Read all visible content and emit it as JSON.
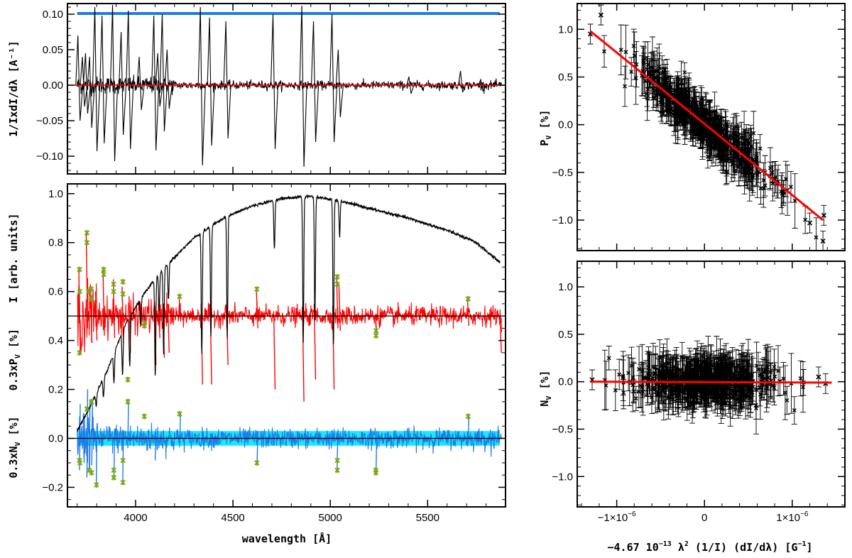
{
  "chart_data": [
    {
      "id": "top-left",
      "type": "line",
      "title": "",
      "xlabel": "",
      "ylabel": "1/IxdI/dλ [A⁻¹]",
      "xlim": [
        3650,
        5900
      ],
      "ylim": [
        -0.125,
        0.115
      ],
      "yticks": [
        -0.1,
        -0.05,
        0.0,
        0.05,
        0.1
      ],
      "ytick_labels": [
        "−0.10",
        "−0.05",
        "0.00",
        "0.05",
        "0.10"
      ],
      "xticks": [
        4000,
        4500,
        5000,
        5500
      ],
      "series": [
        {
          "name": "mask",
          "color": "#1f7ae6",
          "x": [
            3700,
            5870
          ],
          "y": [
            0.101,
            0.101
          ]
        },
        {
          "name": "zero",
          "color": "#ff0000",
          "x": [
            3650,
            5900
          ],
          "y": [
            0,
            0
          ]
        },
        {
          "name": "derivative",
          "color": "#000000",
          "lines": [
            {
              "x": 3711,
              "min": -0.05,
              "max": 0.07
            },
            {
              "x": 3734,
              "min": -0.03,
              "max": 0.04
            },
            {
              "x": 3750,
              "min": -0.04,
              "max": 0.045
            },
            {
              "x": 3771,
              "min": -0.06,
              "max": 0.04
            },
            {
              "x": 3798,
              "min": -0.093,
              "max": 0.11
            },
            {
              "x": 3835,
              "min": -0.082,
              "max": 0.098
            },
            {
              "x": 3889,
              "min": -0.107,
              "max": 0.113
            },
            {
              "x": 3933,
              "min": -0.07,
              "max": 0.075
            },
            {
              "x": 3970,
              "min": -0.09,
              "max": 0.105
            },
            {
              "x": 4026,
              "min": -0.035,
              "max": 0.04
            },
            {
              "x": 4101,
              "min": -0.092,
              "max": 0.098
            },
            {
              "x": 4121,
              "min": -0.03,
              "max": 0.045
            },
            {
              "x": 4144,
              "min": -0.065,
              "max": 0.1
            },
            {
              "x": 4169,
              "min": -0.033,
              "max": 0.05
            },
            {
              "x": 4340,
              "min": -0.113,
              "max": 0.11
            },
            {
              "x": 4387,
              "min": -0.085,
              "max": 0.095
            },
            {
              "x": 4471,
              "min": -0.075,
              "max": 0.09
            },
            {
              "x": 4713,
              "min": -0.09,
              "max": 0.1
            },
            {
              "x": 4861,
              "min": -0.115,
              "max": 0.112
            },
            {
              "x": 4921,
              "min": -0.08,
              "max": 0.09
            },
            {
              "x": 5016,
              "min": -0.08,
              "max": 0.1
            },
            {
              "x": 5048,
              "min": -0.045,
              "max": 0.05
            },
            {
              "x": 5411,
              "min": -0.012,
              "max": 0.012
            },
            {
              "x": 5676,
              "min": -0.01,
              "max": 0.02
            },
            {
              "x": 5780,
              "min": -0.008,
              "max": 0.008
            }
          ]
        }
      ]
    },
    {
      "id": "bottom-left",
      "type": "line",
      "title": "",
      "xlabel": "wavelength [Å]",
      "ylabel_stack": [
        "0.3xN",
        "V",
        " [%]    0.3xP",
        "V",
        " [%]    I [arb. units]"
      ],
      "ylabel": "0.3xNV [%]    0.3xPV [%]    I [arb. units]",
      "xlim": [
        3650,
        5900
      ],
      "ylim": [
        -0.28,
        1.04
      ],
      "yticks": [
        -0.2,
        0.0,
        0.2,
        0.4,
        0.6,
        0.8,
        1.0
      ],
      "ytick_labels": [
        "−0.2",
        "0.0",
        "0.2",
        "0.4",
        "0.6",
        "0.8",
        "1.0"
      ],
      "xticks": [
        4000,
        4500,
        5000,
        5500
      ],
      "xtick_labels": [
        "4000",
        "4500",
        "5000",
        "5500"
      ],
      "series": [
        {
          "name": "intensity",
          "color": "#000000",
          "continuum": [
            [
              3700,
              0.03
            ],
            [
              3760,
              0.12
            ],
            [
              3850,
              0.27
            ],
            [
              3950,
              0.47
            ],
            [
              4050,
              0.6
            ],
            [
              4150,
              0.7
            ],
            [
              4300,
              0.82
            ],
            [
              4450,
              0.9
            ],
            [
              4600,
              0.95
            ],
            [
              4750,
              0.98
            ],
            [
              4900,
              0.99
            ],
            [
              5050,
              0.97
            ],
            [
              5200,
              0.94
            ],
            [
              5400,
              0.9
            ],
            [
              5600,
              0.85
            ],
            [
              5750,
              0.8
            ],
            [
              5870,
              0.72
            ]
          ],
          "absorption_lines": [
            {
              "x": 3798,
              "depth": 0.05
            },
            {
              "x": 3835,
              "depth": 0.08
            },
            {
              "x": 3889,
              "depth": 0.12
            },
            {
              "x": 3933,
              "depth": 0.18
            },
            {
              "x": 3970,
              "depth": 0.2
            },
            {
              "x": 4026,
              "depth": 0.1
            },
            {
              "x": 4101,
              "depth": 0.4
            },
            {
              "x": 4121,
              "depth": 0.15
            },
            {
              "x": 4144,
              "depth": 0.35
            },
            {
              "x": 4169,
              "depth": 0.15
            },
            {
              "x": 4340,
              "depth": 0.5
            },
            {
              "x": 4387,
              "depth": 0.45
            },
            {
              "x": 4471,
              "depth": 0.5
            },
            {
              "x": 4713,
              "depth": 0.2
            },
            {
              "x": 4861,
              "depth": 0.6
            },
            {
              "x": 4921,
              "depth": 0.5
            },
            {
              "x": 5016,
              "depth": 0.6
            },
            {
              "x": 5048,
              "depth": 0.15
            }
          ]
        },
        {
          "name": "Stokes PV (scaled)",
          "color": "#ff0000",
          "baseline": 0.5,
          "lines": [
            {
              "x": 3712,
              "min": 0.35,
              "max": 0.69
            },
            {
              "x": 3750,
              "min": 0.45,
              "max": 0.84
            },
            {
              "x": 3772,
              "min": 0.39,
              "max": 0.63
            },
            {
              "x": 3798,
              "min": 0.4,
              "max": 0.6
            },
            {
              "x": 3836,
              "min": 0.42,
              "max": 0.69
            },
            {
              "x": 3889,
              "min": 0.41,
              "max": 0.65
            },
            {
              "x": 3934,
              "min": 0.39,
              "max": 0.62
            },
            {
              "x": 3970,
              "min": 0.35,
              "max": 0.58
            },
            {
              "x": 4026,
              "min": 0.46,
              "max": 0.56
            },
            {
              "x": 4101,
              "min": 0.3,
              "max": 0.56
            },
            {
              "x": 4121,
              "min": 0.41,
              "max": 0.55
            },
            {
              "x": 4144,
              "min": 0.33,
              "max": 0.55
            },
            {
              "x": 4169,
              "min": 0.35,
              "max": 0.55
            },
            {
              "x": 4227,
              "min": 0.48,
              "max": 0.58
            },
            {
              "x": 4340,
              "min": 0.22,
              "max": 0.55
            },
            {
              "x": 4387,
              "min": 0.22,
              "max": 0.55
            },
            {
              "x": 4471,
              "min": 0.3,
              "max": 0.55
            },
            {
              "x": 4624,
              "min": 0.45,
              "max": 0.61
            },
            {
              "x": 4713,
              "min": 0.2,
              "max": 0.52
            },
            {
              "x": 4861,
              "min": 0.15,
              "max": 0.53
            },
            {
              "x": 4921,
              "min": 0.24,
              "max": 0.55
            },
            {
              "x": 5016,
              "min": 0.2,
              "max": 0.54
            },
            {
              "x": 5036,
              "min": 0.45,
              "max": 0.66
            },
            {
              "x": 5048,
              "min": 0.44,
              "max": 0.63
            },
            {
              "x": 5235,
              "min": 0.43,
              "max": 0.5
            },
            {
              "x": 5708,
              "min": 0.46,
              "max": 0.57
            },
            {
              "x": 5875,
              "min": 0.35,
              "max": 0.5
            }
          ]
        },
        {
          "name": "Stokes NV (scaled)",
          "color": "#1f7ae6",
          "baseline": 0.0,
          "lines": [
            {
              "x": 3712,
              "min": -0.13,
              "max": 0.14
            },
            {
              "x": 3750,
              "min": -0.16,
              "max": 0.2
            },
            {
              "x": 3762,
              "min": -0.14,
              "max": 0.16
            },
            {
              "x": 3775,
              "min": -0.11,
              "max": 0.15
            },
            {
              "x": 3798,
              "min": -0.19,
              "max": 0.05
            },
            {
              "x": 3889,
              "min": -0.16,
              "max": 0.04
            },
            {
              "x": 3934,
              "min": -0.18,
              "max": 0.03
            },
            {
              "x": 3960,
              "min": -0.04,
              "max": 0.16
            },
            {
              "x": 4101,
              "min": -0.09,
              "max": 0.04
            },
            {
              "x": 4227,
              "min": -0.02,
              "max": 0.11
            },
            {
              "x": 4624,
              "min": -0.1,
              "max": 0.03
            },
            {
              "x": 5035,
              "min": -0.12,
              "max": 0.03
            },
            {
              "x": 5235,
              "min": -0.14,
              "max": 0.03
            },
            {
              "x": 5708,
              "min": -0.02,
              "max": 0.09
            }
          ]
        },
        {
          "name": "NV error band",
          "color": "#00e5ff",
          "y": [
            -0.03,
            0.03
          ]
        },
        {
          "name": "flagged PV points",
          "color": "#7aa817",
          "x": [
            3712,
            3713,
            3712,
            3750,
            3750,
            3758,
            3772,
            3772,
            3836,
            3836,
            3887,
            3887,
            3935,
            3935,
            3960,
            4045,
            4045,
            4226,
            4623,
            5036,
            5036,
            5235,
            5235,
            5708
          ],
          "y": [
            0.69,
            0.6,
            0.35,
            0.84,
            0.8,
            0.6,
            0.61,
            0.57,
            0.69,
            0.67,
            0.63,
            0.6,
            0.64,
            0.59,
            0.24,
            0.47,
            0.46,
            0.58,
            0.61,
            0.66,
            0.63,
            0.44,
            0.42,
            0.57
          ]
        },
        {
          "name": "flagged NV points",
          "color": "#7aa817",
          "x": [
            3712,
            3714,
            3750,
            3762,
            3774,
            3774,
            3799,
            3888,
            3888,
            3935,
            3935,
            3960,
            4045,
            4226,
            4623,
            5036,
            5036,
            5234,
            5234,
            5708
          ],
          "y": [
            -0.09,
            -0.1,
            0.12,
            -0.13,
            0.15,
            -0.14,
            -0.19,
            -0.13,
            -0.16,
            -0.09,
            -0.18,
            0.15,
            0.09,
            0.1,
            -0.1,
            -0.09,
            -0.13,
            -0.13,
            -0.14,
            0.09
          ]
        }
      ]
    },
    {
      "id": "top-right",
      "type": "scatter",
      "title": "",
      "xlabel": "",
      "ylabel": "PV [%]",
      "ylabel_main": "P",
      "ylabel_sub": "V",
      "ylabel_tail": " [%]",
      "xlim": [
        -1.45e-06,
        1.6e-06
      ],
      "ylim": [
        -1.32,
        1.27
      ],
      "yticks": [
        -1.0,
        -0.5,
        0.0,
        0.5,
        1.0
      ],
      "ytick_labels": [
        "−1.0",
        "−0.5",
        "0.0",
        "0.5",
        "1.0"
      ],
      "xticks": [
        -1e-06,
        0,
        1e-06
      ],
      "fit": {
        "color": "#ff0000",
        "x": [
          -1.3e-06,
          1.35e-06
        ],
        "y": [
          0.98,
          -1.0
        ]
      },
      "points_color": "#000000",
      "cloud": {
        "slope_per_1e6": -0.75,
        "n": 520,
        "x_range": [
          -1.3e-06,
          1.35e-06
        ]
      },
      "outliers": [
        {
          "x": -1.18e-06,
          "y": 1.15
        },
        {
          "x": -1.3e-06,
          "y": 0.95
        },
        {
          "x": 1.35e-06,
          "y": -1.22
        },
        {
          "x": 1.36e-06,
          "y": -0.95
        },
        {
          "x": 1.2e-06,
          "y": -1.03
        }
      ]
    },
    {
      "id": "bottom-right",
      "type": "scatter",
      "title": "",
      "xlabel": "−4.67 10⁻¹³ λ² (1/I) (dI/dλ) [G⁻¹]",
      "xlabel_parts": [
        "−4.67 10",
        "−13",
        " λ",
        "2",
        " (1/I) (dI/dλ) [G",
        "−1",
        "]"
      ],
      "ylabel": "NV [%]",
      "ylabel_main": "N",
      "ylabel_sub": "V",
      "ylabel_tail": " [%]",
      "xlim": [
        -1.45e-06,
        1.6e-06
      ],
      "ylim": [
        -1.32,
        1.27
      ],
      "yticks": [
        -1.0,
        -0.5,
        0.0,
        0.5,
        1.0
      ],
      "ytick_labels": [
        "−1.0",
        "−0.5",
        "0.0",
        "0.5",
        "1.0"
      ],
      "xticks": [
        -1e-06,
        0,
        1e-06
      ],
      "xtick_labels": [
        "−1×10",
        "0",
        "1×10"
      ],
      "xtick_exponent": "−6",
      "fit": {
        "color": "#ff0000",
        "x": [
          -1.3e-06,
          1.45e-06
        ],
        "y": [
          0.0,
          -0.01
        ]
      },
      "points_color": "#000000",
      "cloud": {
        "slope_per_1e6": 0.0,
        "n": 520,
        "x_range": [
          -1.3e-06,
          1.45e-06
        ]
      },
      "outliers": [
        {
          "x": -1.28e-06,
          "y": 0.02
        },
        {
          "x": 1.3e-06,
          "y": 0.05
        },
        {
          "x": 1.38e-06,
          "y": -0.02
        }
      ]
    }
  ]
}
